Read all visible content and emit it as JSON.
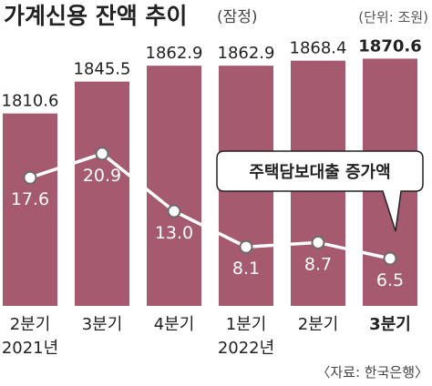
{
  "title": "가계신용 잔액 추이",
  "title_suffix": "(잠정)",
  "unit": "(단위: 조원)",
  "source": "〈자료: 한국은행〉",
  "callout": "주택담보대출 증가액",
  "colors": {
    "bar": "#a55a6f",
    "line": "#ffffff",
    "marker_stroke": "#6b6b6b"
  },
  "chart_data": {
    "type": "bar",
    "categories": [
      "2분기",
      "3분기",
      "4분기",
      "1분기",
      "2분기",
      "3분기"
    ],
    "year_labels": [
      "2021년",
      "",
      "",
      "2022년",
      "",
      ""
    ],
    "bold_last": true,
    "series": [
      {
        "name": "가계신용 잔액",
        "type": "bar",
        "values": [
          1810.6,
          1845.5,
          1862.9,
          1862.9,
          1868.4,
          1870.6
        ]
      },
      {
        "name": "주택담보대출 증가액",
        "type": "line",
        "values": [
          17.6,
          20.9,
          13.0,
          8.1,
          8.7,
          6.5
        ]
      }
    ],
    "bar_labels": [
      "1810.6",
      "1845.5",
      "1862.9",
      "1862.9",
      "1868.4",
      "1870.6"
    ],
    "line_labels": [
      "17.6",
      "20.9",
      "13.0",
      "8.1",
      "8.7",
      "6.5"
    ],
    "bar_ylim": [
      1600,
      1880
    ],
    "line_ylim": [
      0,
      27
    ],
    "grid": false
  }
}
